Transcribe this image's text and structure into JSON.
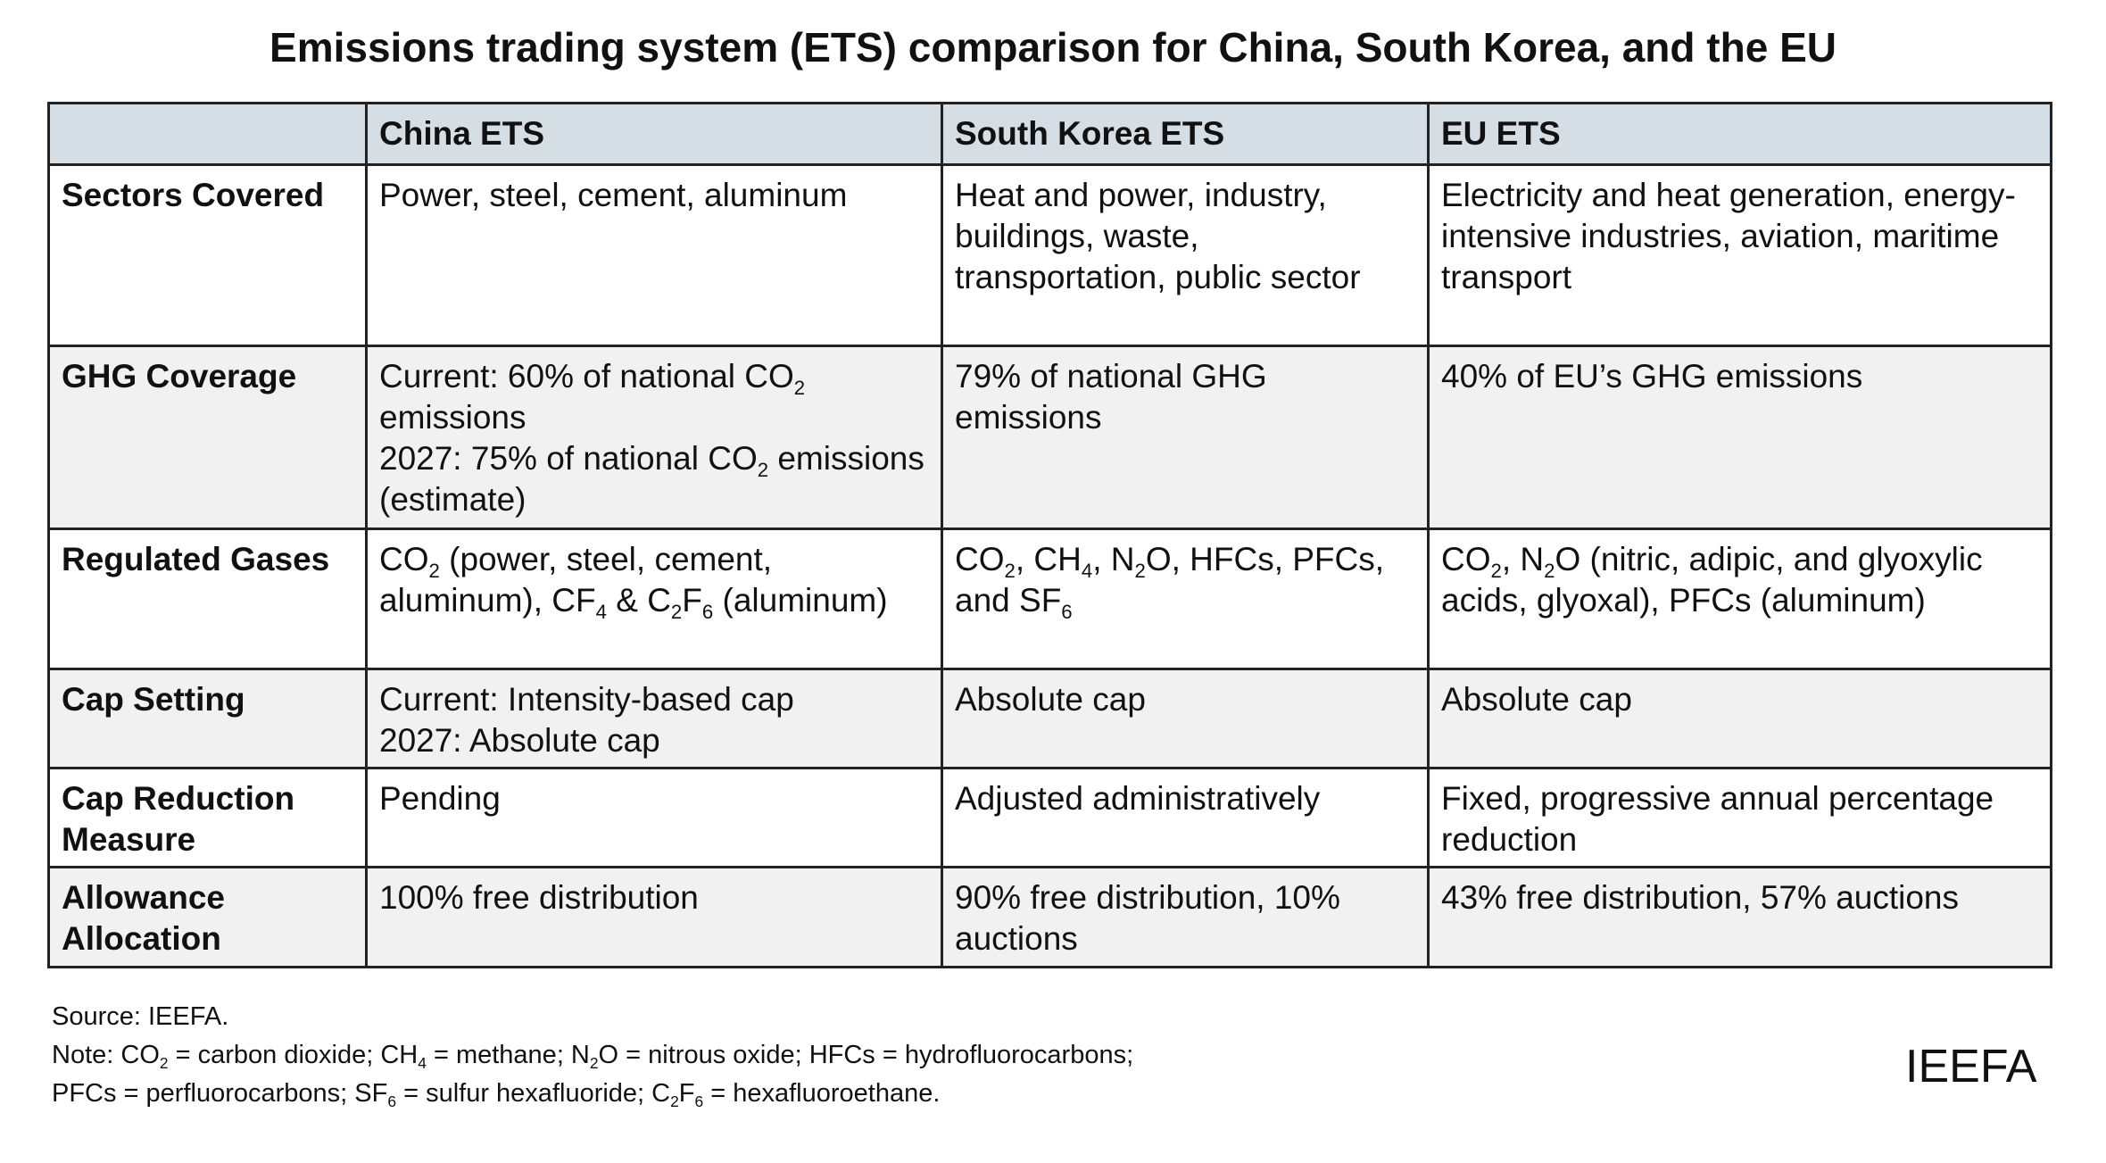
{
  "title": "Emissions trading system (ETS) comparison for China, South Korea, and the EU",
  "table": {
    "columns": [
      "China ETS",
      "South Korea ETS",
      "EU ETS"
    ],
    "rows": [
      {
        "label": [
          [
            "Sectors Covered"
          ]
        ],
        "cells": [
          [
            [
              "Power, steel, cement, aluminum"
            ]
          ],
          [
            [
              "Heat and power, industry, buildings, waste, transportation, public sector"
            ]
          ],
          [
            [
              "Electricity and heat generation, energy-intensive industries, aviation, maritime transport"
            ]
          ]
        ]
      },
      {
        "label": [
          [
            "GHG Coverage"
          ]
        ],
        "cells": [
          [
            [
              "Current: 60% of national CO",
              {
                "sub": "2"
              },
              " emissions"
            ],
            [
              "2027: 75% of national CO",
              {
                "sub": "2"
              },
              " emissions (estimate)"
            ]
          ],
          [
            [
              "79% of national GHG emissions"
            ]
          ],
          [
            [
              "40% of EU’s GHG emissions"
            ]
          ]
        ]
      },
      {
        "label": [
          [
            "Regulated Gases"
          ]
        ],
        "cells": [
          [
            [
              "CO",
              {
                "sub": "2"
              },
              " (power, steel, cement, aluminum), CF",
              {
                "sub": "4"
              },
              " & C",
              {
                "sub": "2"
              },
              "F",
              {
                "sub": "6"
              },
              " (aluminum)"
            ]
          ],
          [
            [
              "CO",
              {
                "sub": "2"
              },
              ", CH",
              {
                "sub": "4"
              },
              ", N",
              {
                "sub": "2"
              },
              "O, HFCs, PFCs, and SF",
              {
                "sub": "6"
              }
            ]
          ],
          [
            [
              "CO",
              {
                "sub": "2"
              },
              ", N",
              {
                "sub": "2"
              },
              "O (nitric, adipic, and glyoxylic acids, glyoxal), PFCs (aluminum)"
            ]
          ]
        ]
      },
      {
        "label": [
          [
            "Cap Setting"
          ]
        ],
        "cells": [
          [
            [
              "Current: Intensity-based cap"
            ],
            [
              "2027: Absolute cap"
            ]
          ],
          [
            [
              "Absolute cap"
            ]
          ],
          [
            [
              "Absolute cap"
            ]
          ]
        ]
      },
      {
        "label": [
          [
            "Cap Reduction Measure"
          ]
        ],
        "cells": [
          [
            [
              "Pending"
            ]
          ],
          [
            [
              "Adjusted administratively"
            ]
          ],
          [
            [
              "Fixed, progressive annual percentage reduction"
            ]
          ]
        ]
      },
      {
        "label": [
          [
            "Allowance Allocation"
          ]
        ],
        "cells": [
          [
            [
              "100% free distribution"
            ]
          ],
          [
            [
              "90% free distribution, 10% auctions"
            ]
          ],
          [
            [
              "43% free distribution, 57% auctions"
            ]
          ]
        ]
      }
    ]
  },
  "notes": [
    [
      "Source: IEEFA."
    ],
    [
      "Note: CO",
      {
        "sub": "2"
      },
      " = carbon dioxide; CH",
      {
        "sub": "4"
      },
      " = methane; N",
      {
        "sub": "2"
      },
      "O = nitrous oxide; HFCs = hydrofluorocarbons;"
    ],
    [
      "PFCs = perfluorocarbons; SF",
      {
        "sub": "6"
      },
      " = sulfur hexafluoride; C",
      {
        "sub": "2"
      },
      "F",
      {
        "sub": "6"
      },
      " = hexafluoroethane."
    ]
  ],
  "logo": "IEEFA"
}
